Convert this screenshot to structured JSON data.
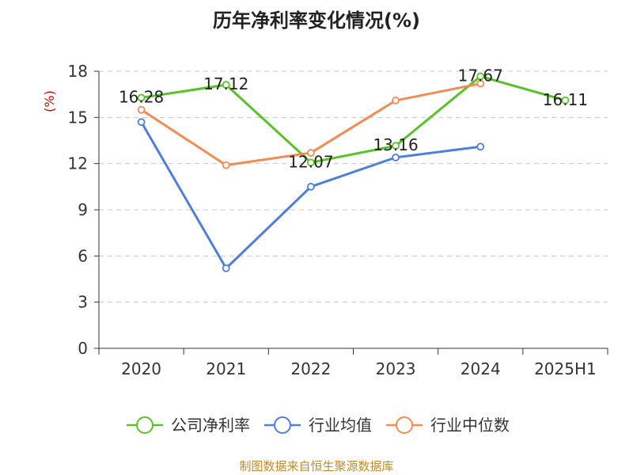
{
  "chart_data": {
    "type": "line",
    "title": "历年净利率变化情况(%)",
    "ylabel": "(%)",
    "xlabel": "",
    "categories": [
      "2020",
      "2021",
      "2022",
      "2023",
      "2024",
      "2025H1"
    ],
    "ylim": [
      0,
      18
    ],
    "yticks": [
      0,
      3,
      6,
      9,
      12,
      15,
      18
    ],
    "grid": true,
    "legend_position": "bottom",
    "series": [
      {
        "name": "公司净利率",
        "color": "#5ac229",
        "values": [
          16.28,
          17.12,
          12.07,
          13.16,
          17.67,
          16.11
        ],
        "data_labels": [
          "16.28",
          "17.12",
          "12.07",
          "13.16",
          "17.67",
          "16.11"
        ]
      },
      {
        "name": "行业均值",
        "color": "#4e7fdc",
        "values": [
          14.7,
          5.2,
          10.5,
          12.4,
          13.1,
          null
        ],
        "data_labels": null
      },
      {
        "name": "行业中位数",
        "color": "#f28b54",
        "values": [
          15.5,
          11.9,
          12.7,
          16.1,
          17.2,
          null
        ],
        "data_labels": null
      }
    ],
    "ylabel_color": "#cc0000"
  },
  "footer": {
    "source": "制图数据来自恒生聚源数据库"
  }
}
